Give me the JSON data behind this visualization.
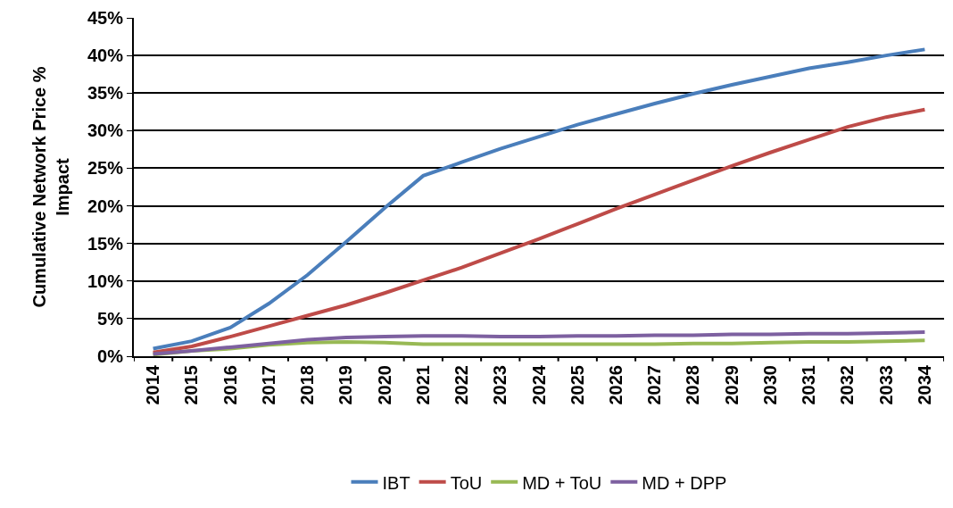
{
  "chart_data": {
    "type": "line",
    "ylabel": "Cumulative Network Price % Impact",
    "categories": [
      "2014",
      "2015",
      "2016",
      "2017",
      "2018",
      "2019",
      "2020",
      "2021",
      "2022",
      "2023",
      "2024",
      "2025",
      "2026",
      "2027",
      "2028",
      "2029",
      "2030",
      "2031",
      "2032",
      "2033",
      "2034"
    ],
    "series": [
      {
        "name": "IBT",
        "color": "#4a7ebb",
        "values": [
          1.0,
          2.0,
          3.8,
          7.0,
          10.8,
          15.2,
          19.7,
          24.0,
          25.8,
          27.6,
          29.2,
          30.8,
          32.2,
          33.6,
          34.9,
          36.1,
          37.2,
          38.3,
          39.1,
          40.0,
          40.8
        ]
      },
      {
        "name": "ToU",
        "color": "#be4b48",
        "values": [
          0.5,
          1.3,
          2.6,
          4.0,
          5.4,
          6.8,
          8.4,
          10.1,
          11.8,
          13.7,
          15.6,
          17.6,
          19.6,
          21.5,
          23.4,
          25.3,
          27.1,
          28.8,
          30.5,
          31.8,
          32.8
        ]
      },
      {
        "name": "MD + ToU",
        "color": "#98b954",
        "values": [
          0.2,
          0.7,
          1.0,
          1.5,
          1.8,
          1.9,
          1.8,
          1.6,
          1.6,
          1.6,
          1.6,
          1.6,
          1.6,
          1.6,
          1.7,
          1.7,
          1.8,
          1.9,
          1.9,
          2.0,
          2.1
        ]
      },
      {
        "name": "MD + DPP",
        "color": "#7d60a0",
        "values": [
          0.3,
          0.7,
          1.2,
          1.7,
          2.2,
          2.5,
          2.6,
          2.7,
          2.7,
          2.6,
          2.6,
          2.7,
          2.7,
          2.8,
          2.8,
          2.9,
          2.9,
          3.0,
          3.0,
          3.1,
          3.2
        ]
      }
    ],
    "ylim": [
      0,
      45
    ],
    "yticks": [
      {
        "value": 0,
        "label": "0%"
      },
      {
        "value": 5,
        "label": "5%"
      },
      {
        "value": 10,
        "label": "10%"
      },
      {
        "value": 15,
        "label": "15%"
      },
      {
        "value": 20,
        "label": "20%"
      },
      {
        "value": 25,
        "label": "25%"
      },
      {
        "value": 30,
        "label": "30%"
      },
      {
        "value": 35,
        "label": "35%"
      },
      {
        "value": 40,
        "label": "40%"
      },
      {
        "value": 45,
        "label": "45%"
      }
    ],
    "grid": "y",
    "legend": "bottom",
    "marker": "none",
    "line_style": "solid"
  }
}
